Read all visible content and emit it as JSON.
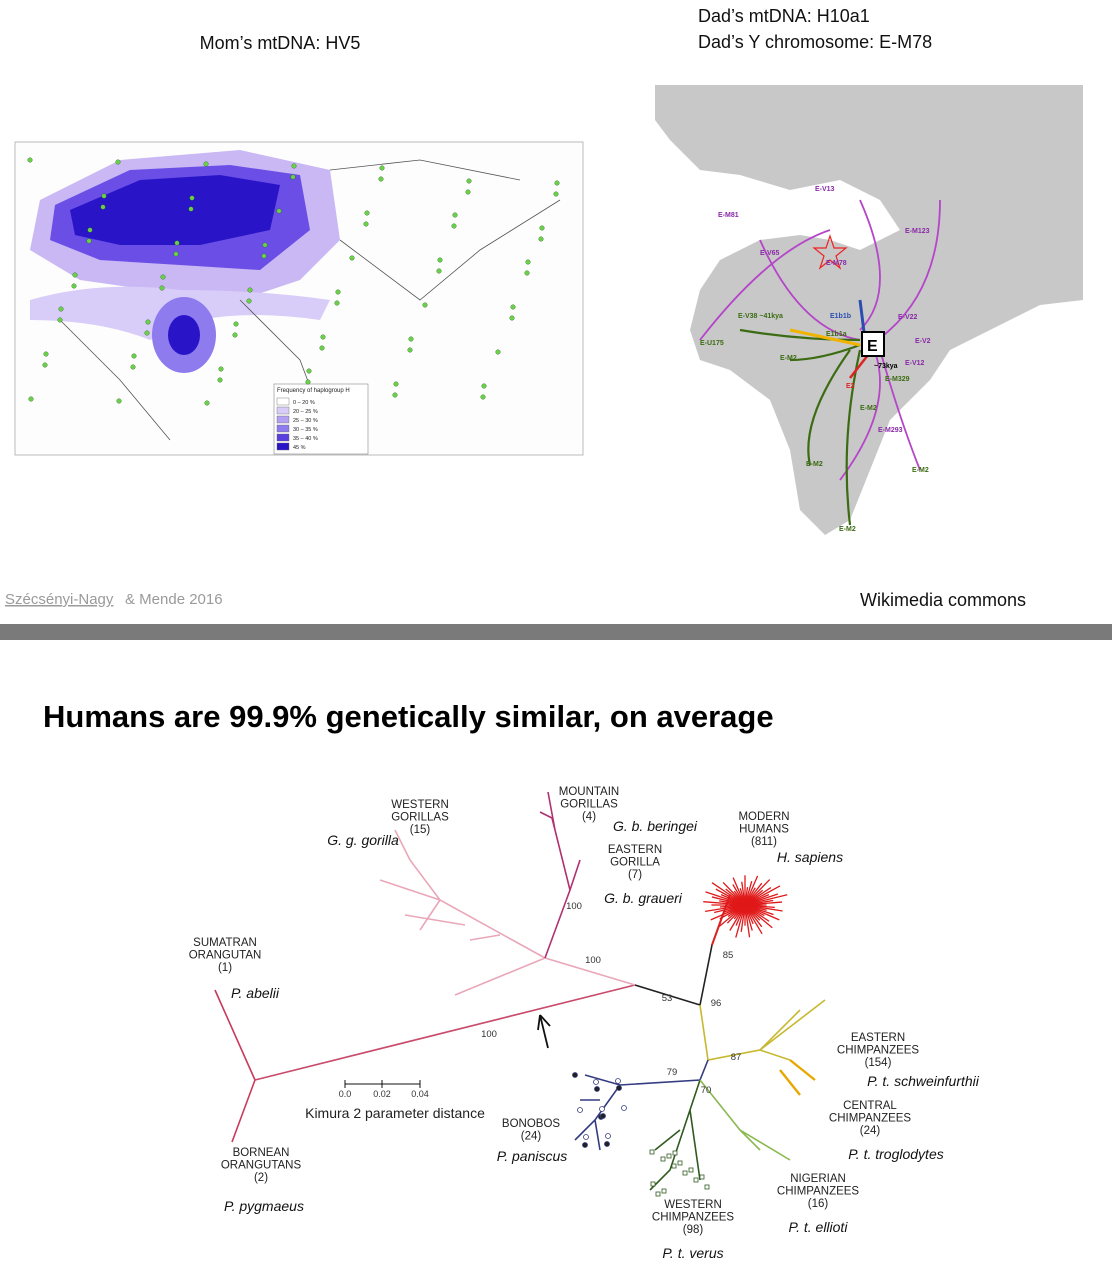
{
  "top_slide": {
    "left_caption": "Mom’s mtDNA: HV5",
    "right_caption": [
      "Dad’s mtDNA: H10a1",
      "Dad’s Y chromosome: E-M78"
    ],
    "left_credit_link": "Szécsényi-Nagy",
    "left_credit_rest": "& Mende 2016",
    "right_credit": "Wikimedia commons",
    "left_map": {
      "legend_title": "Frequency of haplogroup H",
      "legend_items": [
        "0 – 20 %",
        "20 – 25 %",
        "25 – 30 %",
        "30 – 35 %",
        "35 – 40 %",
        "45 %"
      ]
    },
    "right_map": {
      "labels": [
        "E-V13",
        "E-M81",
        "E-V65",
        "E-M78",
        "E-M123",
        "E-V38 ~41kya",
        "E1b1b",
        "E1b1a",
        "E-U175",
        "E-M2",
        "E",
        "~73kya",
        "E2",
        "E-M329",
        "E-V22",
        "E-V2",
        "E-V12",
        "E-M2",
        "E-M293",
        "E-M2",
        "E-M2",
        "E-M2"
      ]
    }
  },
  "bottom_slide": {
    "title": "Humans are 99.9% genetically similar, on average",
    "tree": {
      "groups": [
        {
          "name": [
            "WESTERN",
            "GORILLAS"
          ],
          "count": "(15)",
          "species": "G. g. gorilla"
        },
        {
          "name": [
            "MOUNTAIN",
            "GORILLAS"
          ],
          "count": "(4)",
          "species": "G. b. beringei"
        },
        {
          "name": [
            "EASTERN",
            "GORILLA"
          ],
          "count": "(7)",
          "species": "G. b. graueri"
        },
        {
          "name": [
            "MODERN",
            "HUMANS"
          ],
          "count": "(811)",
          "species": "H. sapiens"
        },
        {
          "name": [
            "SUMATRAN",
            "ORANGUTAN"
          ],
          "count": "(1)",
          "species": "P. abelii"
        },
        {
          "name": [
            "EASTERN",
            "CHIMPANZEES"
          ],
          "count": "(154)",
          "species": "P. t. schweinfurthii"
        },
        {
          "name": [
            "CENTRAL",
            "CHIMPANZEES"
          ],
          "count": "(24)",
          "species": "P. t. troglodytes"
        },
        {
          "name": [
            "BONOBOS"
          ],
          "count": "(24)",
          "species": "P. paniscus"
        },
        {
          "name": [
            "BORNEAN",
            "ORANGUTANS"
          ],
          "count": "(2)",
          "species": "P. pygmaeus"
        },
        {
          "name": [
            "NIGERIAN",
            "CHIMPANZEES"
          ],
          "count": "(16)",
          "species": "P. t. ellioti"
        },
        {
          "name": [
            "WESTERN",
            "CHIMPANZEES"
          ],
          "count": "(98)",
          "species": "P. t. verus"
        }
      ],
      "bootstrap": [
        "100",
        "100",
        "53",
        "96",
        "85",
        "87",
        "79",
        "70",
        "100"
      ],
      "scale": {
        "ticks": [
          "0.0",
          "0.02",
          "0.04"
        ],
        "label": "Kimura 2 parameter distance"
      }
    }
  }
}
